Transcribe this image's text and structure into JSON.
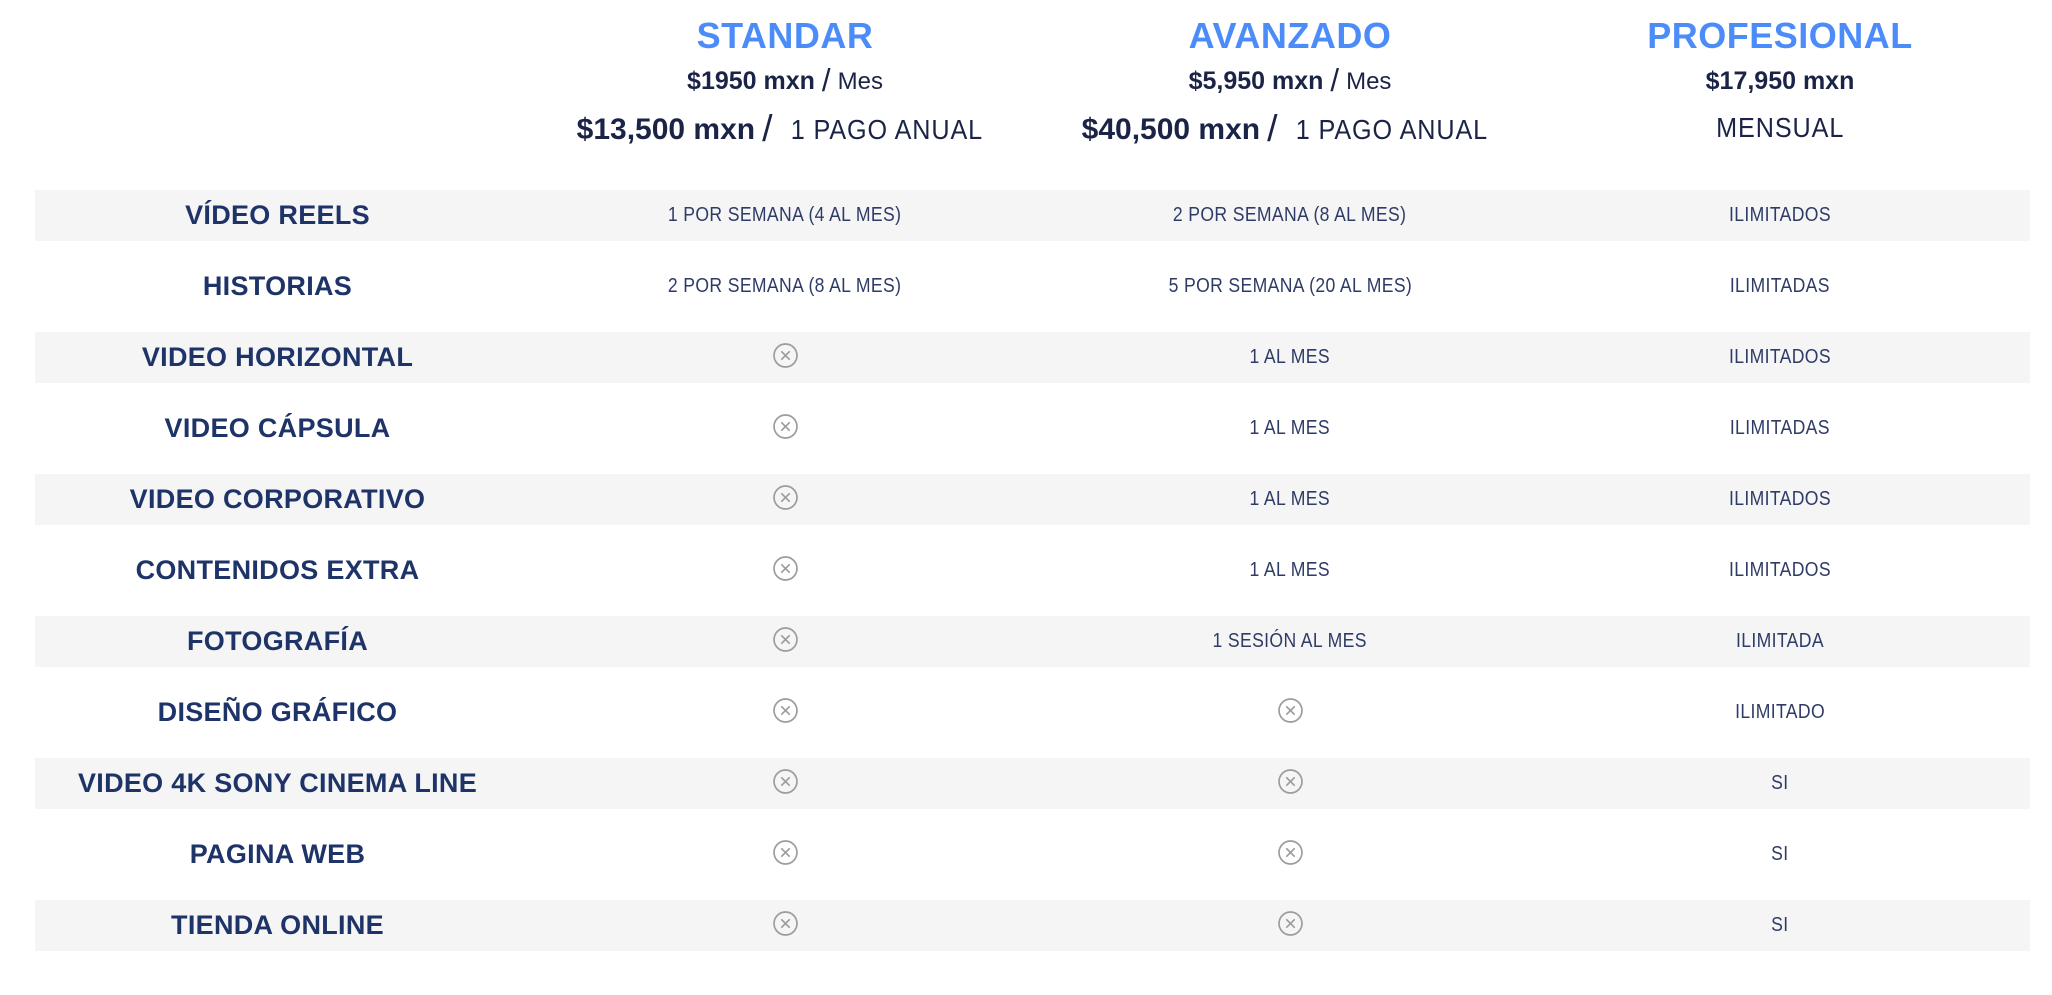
{
  "colors": {
    "accent_blue": "#4c8cf8",
    "price_navy": "#1b2447",
    "label_navy": "#1e3367",
    "value_navy": "#2e3b66",
    "row_band_gray": "#f5f5f5",
    "icon_gray": "#9c9c9c"
  },
  "plan_keys": [
    "standar",
    "avanzado",
    "profesional"
  ],
  "plans": [
    {
      "name": "STANDAR",
      "price_month": "$1950 mxn",
      "price_month_suffix": "Mes",
      "price_annual": "$13,500 mxn",
      "price_annual_suffix": "1 PAGO ANUAL"
    },
    {
      "name": "AVANZADO",
      "price_month": "$5,950 mxn",
      "price_month_suffix": "Mes",
      "price_annual": "$40,500 mxn",
      "price_annual_suffix": "1 PAGO ANUAL"
    },
    {
      "name": "PROFESIONAL",
      "price_month": "$17,950 mxn",
      "price_month_suffix": "",
      "price_annual": "",
      "price_annual_suffix": "MENSUAL"
    }
  ],
  "not_included_icon": "circle-x-icon",
  "rows": [
    {
      "feature": "VÍDEO REELS",
      "standar": "1 POR SEMANA (4 AL MES)",
      "avanzado": "2 POR SEMANA (8 AL MES)",
      "profesional": "ILIMITADOS"
    },
    {
      "feature": "HISTORIAS",
      "standar": "2 POR SEMANA (8 AL MES)",
      "avanzado": "5 POR SEMANA (20 AL MES)",
      "profesional": "ILIMITADAS"
    },
    {
      "feature": "VIDEO HORIZONTAL",
      "standar": null,
      "avanzado": "1 AL MES",
      "profesional": "ILIMITADOS"
    },
    {
      "feature": "VIDEO CÁPSULA",
      "standar": null,
      "avanzado": "1 AL MES",
      "profesional": "ILIMITADAS"
    },
    {
      "feature": "VIDEO CORPORATIVO",
      "standar": null,
      "avanzado": "1 AL MES",
      "profesional": "ILIMITADOS"
    },
    {
      "feature": "CONTENIDOS EXTRA",
      "standar": null,
      "avanzado": "1 AL MES",
      "profesional": "ILIMITADOS"
    },
    {
      "feature": "FOTOGRAFÍA",
      "standar": null,
      "avanzado": "1 SESIÓN AL MES",
      "profesional": "ILIMITADA"
    },
    {
      "feature": "DISEÑO GRÁFICO",
      "standar": null,
      "avanzado": null,
      "profesional": "ILIMITADO"
    },
    {
      "feature": "VIDEO 4K SONY CINEMA LINE",
      "standar": null,
      "avanzado": null,
      "profesional": "SI"
    },
    {
      "feature": "PAGINA WEB",
      "standar": null,
      "avanzado": null,
      "profesional": "SI"
    },
    {
      "feature": "TIENDA ONLINE",
      "standar": null,
      "avanzado": null,
      "profesional": "SI"
    }
  ]
}
